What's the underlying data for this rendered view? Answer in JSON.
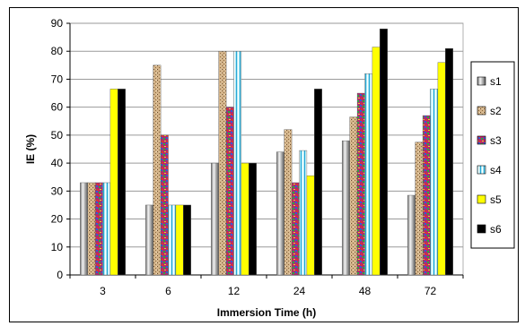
{
  "chart_data": {
    "type": "bar",
    "title": "",
    "xlabel": "Immersion Time (h)",
    "ylabel": "IE (%)",
    "ylim": [
      0,
      90
    ],
    "yticks": [
      0,
      10,
      20,
      30,
      40,
      50,
      60,
      70,
      80,
      90
    ],
    "grid": true,
    "legend_position": "right",
    "categories": [
      "3",
      "6",
      "12",
      "24",
      "48",
      "72"
    ],
    "series": [
      {
        "name": "s1",
        "color": "#a8a8a8",
        "pattern": "gray-cylinder",
        "values": [
          33,
          25,
          40,
          44,
          48,
          28.5
        ]
      },
      {
        "name": "s2",
        "color": "#c8a878",
        "pattern": "tan-speckle",
        "values": [
          33,
          75,
          80,
          52,
          56.5,
          47.5
        ]
      },
      {
        "name": "s3",
        "color": "#b0306a",
        "pattern": "magenta-multicolor",
        "values": [
          33,
          50,
          60,
          33,
          65,
          57
        ]
      },
      {
        "name": "s4",
        "color": "#a8e8f0",
        "pattern": "cyan-striped",
        "values": [
          33,
          25,
          80,
          44.5,
          72,
          66.5
        ]
      },
      {
        "name": "s5",
        "color": "#ffff00",
        "pattern": "solid",
        "values": [
          66.5,
          25,
          40,
          35.5,
          81.5,
          76
        ]
      },
      {
        "name": "s6",
        "color": "#000000",
        "pattern": "solid",
        "values": [
          66.5,
          25,
          40,
          66.5,
          88,
          81
        ]
      }
    ]
  }
}
